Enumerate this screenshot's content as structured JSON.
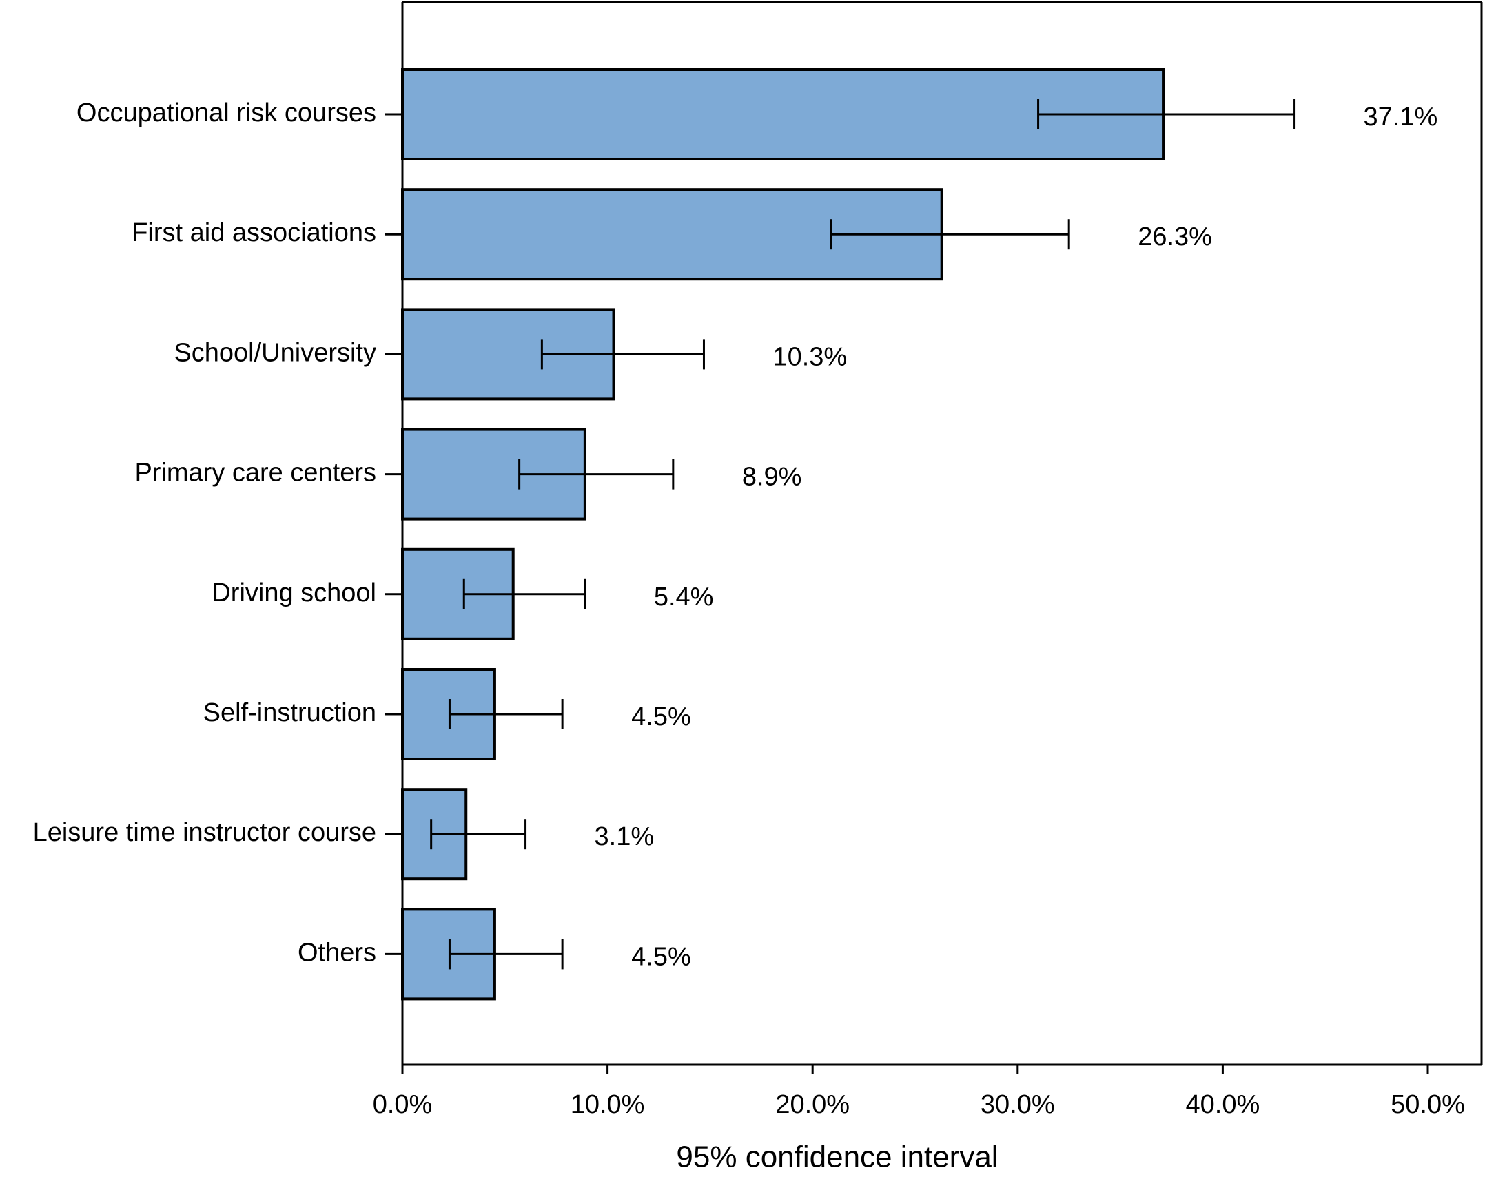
{
  "chart_data": {
    "type": "bar",
    "orientation": "horizontal",
    "x_label": "95% confidence interval",
    "categories": [
      "Occupational risk courses",
      "First aid associations",
      "School/University",
      "Primary care centers",
      "Driving school",
      "Self-instruction",
      "Leisure time instructor course",
      "Others"
    ],
    "values": [
      37.1,
      26.3,
      10.3,
      8.9,
      5.4,
      4.5,
      3.1,
      4.5
    ],
    "value_labels": [
      "37.1%",
      "26.3%",
      "10.3%",
      "8.9%",
      "5.4%",
      "4.5%",
      "3.1%",
      "4.5%"
    ],
    "ci_low": [
      31.0,
      20.9,
      6.8,
      5.7,
      3.0,
      2.3,
      1.4,
      2.3
    ],
    "ci_high": [
      43.5,
      32.5,
      14.7,
      13.2,
      8.9,
      7.8,
      6.0,
      7.8
    ],
    "color": "#7eaad6",
    "xlim": [
      0,
      50
    ],
    "xticks": [
      {
        "value": 0,
        "label": "0.0%"
      },
      {
        "value": 10,
        "label": "10.0%"
      },
      {
        "value": 20,
        "label": "20.0%"
      },
      {
        "value": 30,
        "label": "30.0%"
      },
      {
        "value": 40,
        "label": "40.0%"
      },
      {
        "value": 50,
        "label": "50.0%"
      }
    ]
  }
}
